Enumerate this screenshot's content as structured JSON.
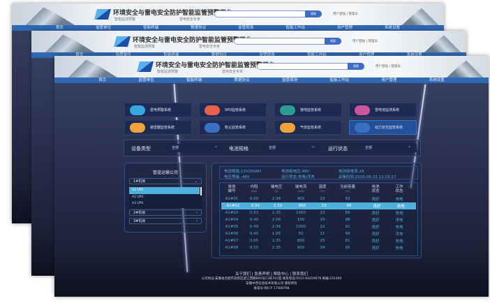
{
  "header": {
    "title": "环境安全与雷电安全防护智能监管预警平台",
    "slogan_left": "智能监测预警",
    "slogan_right": "雷电安全专家",
    "search_button": "搜索",
    "user_links": "用户登陆 | 管理员"
  },
  "nav": [
    "首页",
    "监管单位",
    "智能终端",
    "数据协议",
    "监管现场",
    "智能工作站",
    "用户管理",
    "系统设置"
  ],
  "tiles": [
    {
      "label": "雷电预警系统",
      "icon": "cloud-lightning-icon",
      "color": "#3aa6e0"
    },
    {
      "label": "SPD监管系统",
      "icon": "spd-icon",
      "color": "#e8604c"
    },
    {
      "label": "接地监管系统",
      "icon": "ground-icon",
      "color": "#2a9d8f"
    },
    {
      "label": "雷电流监测系统",
      "icon": "waveform-icon",
      "color": "#c8559e"
    },
    {
      "label": "避雷器监管系统",
      "icon": "arrester-icon",
      "color": "#f2a23a"
    },
    {
      "label": "粉尘监管系统",
      "icon": "dust-icon",
      "color": "#3a6fc4"
    },
    {
      "label": "气体监管系统",
      "icon": "gas-icon",
      "color": "#f2a23a"
    },
    {
      "label": "动力安全监管系统",
      "icon": "power-icon",
      "color": "#3a6fc4",
      "active": true
    }
  ],
  "filters": {
    "type_label": "设备类型",
    "type_value": "全部",
    "spec_label": "电池规格",
    "spec_value": "全部",
    "status_label": "运行状态",
    "status_value": "全部"
  },
  "tree": {
    "title": "管道运输公司",
    "groups": [
      "1#机房",
      "2#机房",
      "3#机房"
    ],
    "items": [
      "A1 UPS",
      "A2 UPS",
      "A3 UPS"
    ]
  },
  "info": {
    "spec": "电池规格:12V250AH",
    "group_voltage": "电池组电压:48V",
    "group_current": "电池组电流:2A",
    "level": "电压等级:-48V",
    "run_status": "运行状态:充电/浮充",
    "time": "采集时间:2020-06-22 12:23:17"
  },
  "table": {
    "headers": [
      [
        "单体",
        "编号",
        ""
      ],
      [
        "内阻",
        "",
        "(mΩ)"
      ],
      [
        "端电压",
        "",
        "(V)"
      ],
      [
        "端电流",
        "",
        "(mA)"
      ],
      [
        "温度",
        "",
        "(°C)"
      ],
      [
        "当前容量",
        "",
        "(%)"
      ],
      [
        "电池",
        "状态",
        ""
      ],
      [
        "工作",
        "状态",
        ""
      ]
    ],
    "rows": [
      [
        "A1#01",
        "0.50",
        "2.34",
        "900",
        "23",
        "93",
        "良好",
        "充电"
      ],
      [
        "A1#02",
        "0.55",
        "2.33",
        "950",
        "23",
        "95",
        "良好",
        "充电"
      ],
      [
        "A1#03",
        "0.53",
        "2.35",
        "1000",
        "23",
        "89",
        "良好",
        "充电"
      ],
      [
        "A1#04",
        "0.40",
        "2.00",
        "100",
        "20",
        "98",
        "良好",
        "浮充"
      ],
      [
        "A1#05",
        "0.49",
        "2.34",
        "1000",
        "22",
        "92",
        "良好",
        "充电"
      ],
      [
        "A1#06",
        "0.45",
        "1.95",
        "50",
        "21",
        "99",
        "良好",
        "浮充"
      ],
      [
        "A1#07",
        "0.65",
        "2.35",
        "800",
        "25",
        "81",
        "良好",
        "充电"
      ],
      [
        "A1#08",
        "0.55",
        "2.35",
        "900",
        "24",
        "95",
        "良好",
        "充电"
      ]
    ],
    "selected_row": 1
  },
  "footer": {
    "links": "关于我们 | 免责声明 | 帮助中心 | 联系我们",
    "address": "公司地址:安徽省合肥市高新区望江西路800号C1栋703室 联系电话:0551-64220678 邮编:231400",
    "copyright": "安徽中普信息技术有限公司 版权所有",
    "icp": "备案号:皖ICP 17008798"
  }
}
